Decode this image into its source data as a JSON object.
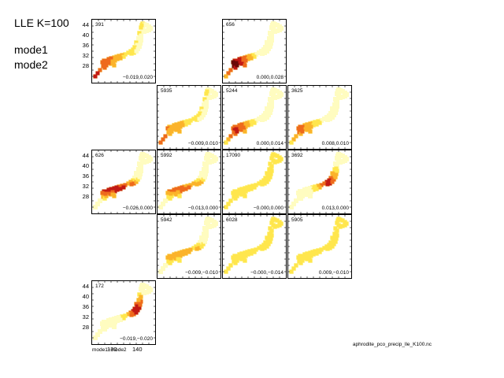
{
  "heading": "LLE K=100",
  "mode_labels": [
    "mode1",
    "mode2"
  ],
  "footer": "aphrodite_pco_precip_lle_K100.nc",
  "x_axis_label": "mode1−mode2",
  "chart_data": {
    "type": "heatmap",
    "title": "LLE K=100",
    "layout": "grid of small-multiple maps of Japan (5 rows x 4 columns)",
    "xlabel": "mode1−mode2",
    "yticks": [
      "44",
      "40",
      "36",
      "32",
      "28"
    ],
    "xticks": [
      "130",
      "140"
    ],
    "colormap": [
      "#fffcc0",
      "#ffe64d",
      "#fbb32a",
      "#ee6a1c",
      "#c21a14",
      "#6a0a08"
    ],
    "panels": [
      {
        "row": 0,
        "col": 0,
        "count": "391",
        "coords": "−0.019,0.020",
        "intensity": 0.88,
        "focus": "southwest"
      },
      {
        "row": 0,
        "col": 2,
        "count": "656",
        "coords": "0.000,0.028",
        "intensity": 0.95,
        "focus": "kyushu"
      },
      {
        "row": 1,
        "col": 1,
        "count": "5935",
        "coords": "−0.009,0.010",
        "intensity": 0.62,
        "focus": "southwest"
      },
      {
        "row": 1,
        "col": 2,
        "count": "5244",
        "coords": "0.000,0.014",
        "intensity": 0.7,
        "focus": "kyushu"
      },
      {
        "row": 1,
        "col": 3,
        "count": "3625",
        "coords": "0.008,0.010",
        "intensity": 0.5,
        "focus": "kyushu"
      },
      {
        "row": 2,
        "col": 0,
        "count": "626",
        "coords": "−0.026,0.000",
        "intensity": 0.8,
        "focus": "pacific"
      },
      {
        "row": 2,
        "col": 1,
        "count": "5992",
        "coords": "−0.013,0.000",
        "intensity": 0.55,
        "focus": "pacific"
      },
      {
        "row": 2,
        "col": 2,
        "count": "17090",
        "coords": "−0.000,0.000",
        "intensity": 0.22,
        "focus": "uniform"
      },
      {
        "row": 2,
        "col": 3,
        "count": "3692",
        "coords": "0.013,0.000",
        "intensity": 0.75,
        "focus": "central"
      },
      {
        "row": 3,
        "col": 1,
        "count": "5942",
        "coords": "−0.009,−0.010",
        "intensity": 0.4,
        "focus": "pacific"
      },
      {
        "row": 3,
        "col": 2,
        "count": "6028",
        "coords": "−0.000,−0.014",
        "intensity": 0.2,
        "focus": "uniform"
      },
      {
        "row": 3,
        "col": 3,
        "count": "5905",
        "coords": "0.009,−0.010",
        "intensity": 0.25,
        "focus": "uniform"
      },
      {
        "row": 4,
        "col": 0,
        "count": "172",
        "coords": "−0.019,−0.020",
        "intensity": 0.85,
        "focus": "east"
      }
    ]
  }
}
